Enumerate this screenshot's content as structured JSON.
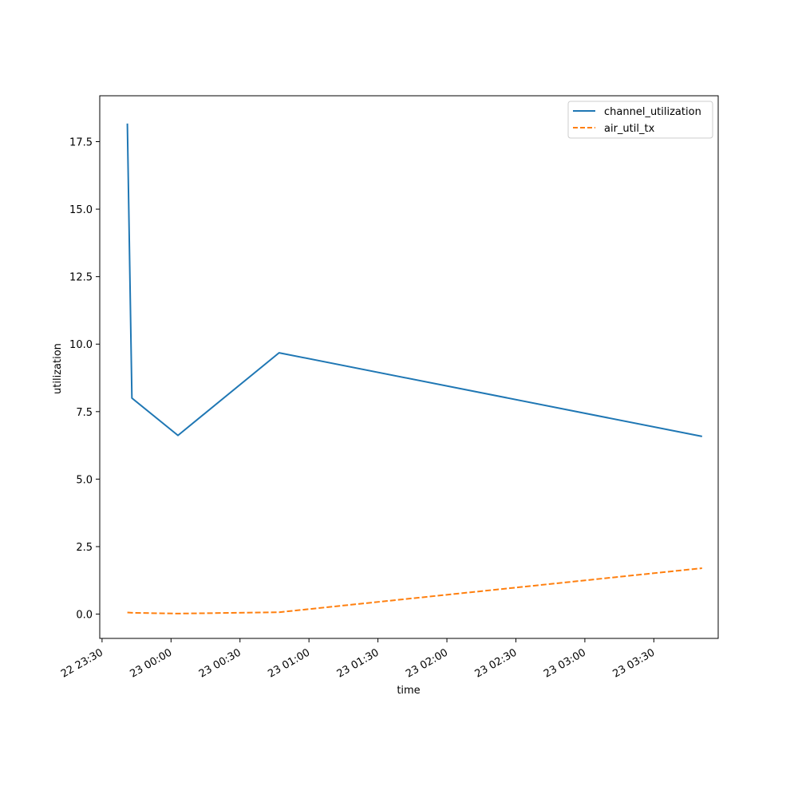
{
  "chart_data": {
    "type": "line",
    "xlabel": "time",
    "ylabel": "utilization",
    "x_range": [
      "22 23:29",
      "23 03:58"
    ],
    "ylim": [
      -0.9,
      19.2
    ],
    "x_ticks": [
      {
        "t": "22 23:30",
        "label": "22 23:30"
      },
      {
        "t": "23 00:00",
        "label": "23 00:00"
      },
      {
        "t": "23 00:30",
        "label": "23 00:30"
      },
      {
        "t": "23 01:00",
        "label": "23 01:00"
      },
      {
        "t": "23 01:30",
        "label": "23 01:30"
      },
      {
        "t": "23 02:00",
        "label": "23 02:00"
      },
      {
        "t": "23 02:30",
        "label": "23 02:30"
      },
      {
        "t": "23 03:00",
        "label": "23 03:00"
      },
      {
        "t": "23 03:30",
        "label": "23 03:30"
      }
    ],
    "y_ticks": [
      0.0,
      2.5,
      5.0,
      7.5,
      10.0,
      12.5,
      15.0,
      17.5
    ],
    "y_tick_labels": [
      "0.0",
      "2.5",
      "5.0",
      "7.5",
      "10.0",
      "12.5",
      "15.0",
      "17.5"
    ],
    "grid": false,
    "legend_position": "top-right",
    "series": [
      {
        "name": "channel_utilization",
        "color": "#1f77b4",
        "style": "solid",
        "points": [
          {
            "t": "22 23:41",
            "y": 18.17
          },
          {
            "t": "22 23:43",
            "y": 8.0
          },
          {
            "t": "23 00:03",
            "y": 6.62
          },
          {
            "t": "23 00:47",
            "y": 9.68
          },
          {
            "t": "23 03:51",
            "y": 6.58
          }
        ]
      },
      {
        "name": "air_util_tx",
        "color": "#ff7f0e",
        "style": "dashed",
        "points": [
          {
            "t": "22 23:41",
            "y": 0.06
          },
          {
            "t": "22 23:43",
            "y": 0.05
          },
          {
            "t": "23 00:03",
            "y": 0.02
          },
          {
            "t": "23 00:47",
            "y": 0.07
          },
          {
            "t": "23 03:51",
            "y": 1.7
          }
        ]
      }
    ]
  }
}
